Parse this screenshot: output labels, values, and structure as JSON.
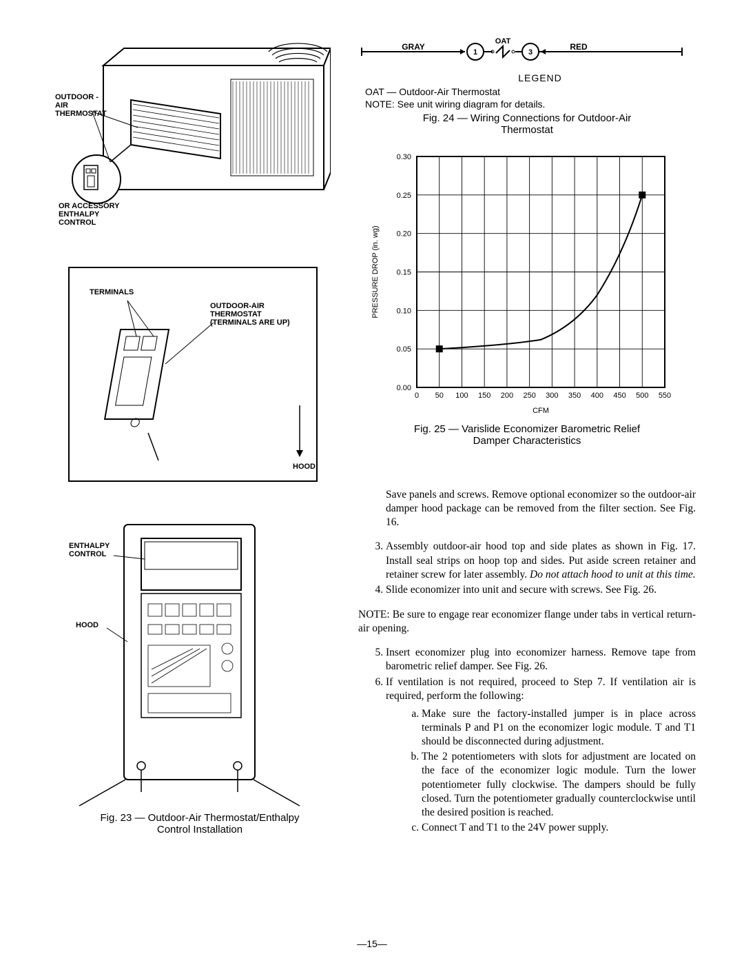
{
  "page_number": "—15—",
  "left": {
    "fig23": {
      "img1_labels": {
        "oat": "OUTDOOR-\nAIR\nTHERMOSTAT",
        "enth": "OR ACCESSORY\nENTHALPY\nCONTROL"
      },
      "img2_labels": {
        "terminals": "TERMINALS",
        "oat_up": "OUTDOOR-AIR\nTHERMOSTAT\n(TERMINALS ARE UP)",
        "hood": "HOOD"
      },
      "img3_labels": {
        "enth": "ENTHALPY\nCONTROL",
        "hood": "HOOD"
      },
      "caption": "Fig. 23 — Outdoor-Air Thermostat/Enthalpy Control Installation"
    }
  },
  "right": {
    "fig24": {
      "wire": {
        "left_label": "GRAY",
        "right_label": "RED",
        "top_label": "OAT",
        "t1": "1",
        "t3": "3"
      },
      "legend_title": "LEGEND",
      "legend_oat": "OAT  —  Outdoor-Air Thermostat",
      "legend_note": "NOTE: See unit wiring diagram for details.",
      "caption": "Fig. 24 — Wiring Connections for Outdoor-Air Thermostat"
    },
    "fig25": {
      "chart": {
        "type": "line",
        "ylabel": "PRESSURE DROP (in. wg)",
        "xlabel": "CFM",
        "xlim": [
          0,
          550
        ],
        "ylim": [
          0,
          0.3
        ],
        "xticks": [
          0,
          50,
          100,
          150,
          200,
          250,
          300,
          350,
          400,
          450,
          500,
          550
        ],
        "yticks": [
          0.0,
          0.05,
          0.1,
          0.15,
          0.2,
          0.25,
          0.3
        ],
        "xtick_labels": [
          "0",
          "50",
          "100",
          "150",
          "200",
          "250",
          "300",
          "350",
          "400",
          "450",
          "500",
          "550"
        ],
        "ytick_labels": [
          "0.00",
          "0.05",
          "0.10",
          "0.15",
          "0.20",
          "0.25",
          "0.30"
        ],
        "series": {
          "x": [
            50,
            275,
            400,
            500
          ],
          "y": [
            0.05,
            0.062,
            0.12,
            0.25
          ]
        },
        "markers": [
          {
            "x": 50,
            "y": 0.05
          },
          {
            "x": 500,
            "y": 0.25
          }
        ],
        "line_color": "#000000",
        "line_width": 2,
        "grid_color": "#000000",
        "background_color": "#ffffff",
        "label_fontsize": 11
      },
      "caption": "Fig. 25 — Varislide  Economizer Barometric Relief Damper Characteristics"
    },
    "text": {
      "para_intro": "Save panels and screws. Remove optional economizer so the outdoor-air damper hood package can be re­moved from the filter section. See Fig. 16.",
      "step3": "Assembly outdoor-air hood top and side plates as shown in Fig. 17. Install seal strips on hoop top and sides. Put aside screen retainer and retainer screw for later assembly. ",
      "step3_italic": "Do not attach hood to unit at this time.",
      "step4": "Slide economizer into unit and secure with screws. See Fig. 26.",
      "note": "NOTE: Be sure to engage rear economizer flange under tabs in vertical return-air opening.",
      "step5": "Insert economizer plug into economizer harness. Re­move tape from barometric relief damper. See Fig. 26.",
      "step6": "If ventilation is not required, proceed to Step 7. If ven­tilation air is required, perform the following:",
      "step6a": "Make sure the factory-installed jumper is in place across terminals P and P1 on the economizer logic module. T and T1 should be disconnected during adjustment.",
      "step6b": "The 2 potentiometers with slots for adjustment are located on the face of the economizer logic module. Turn the lower potentiometer fully clockwise. The dampers should be fully closed. Turn the potenti­ometer gradually counterclockwise until the de­sired position is reached.",
      "step6c": "Connect T and T1 to the 24V power supply."
    }
  }
}
